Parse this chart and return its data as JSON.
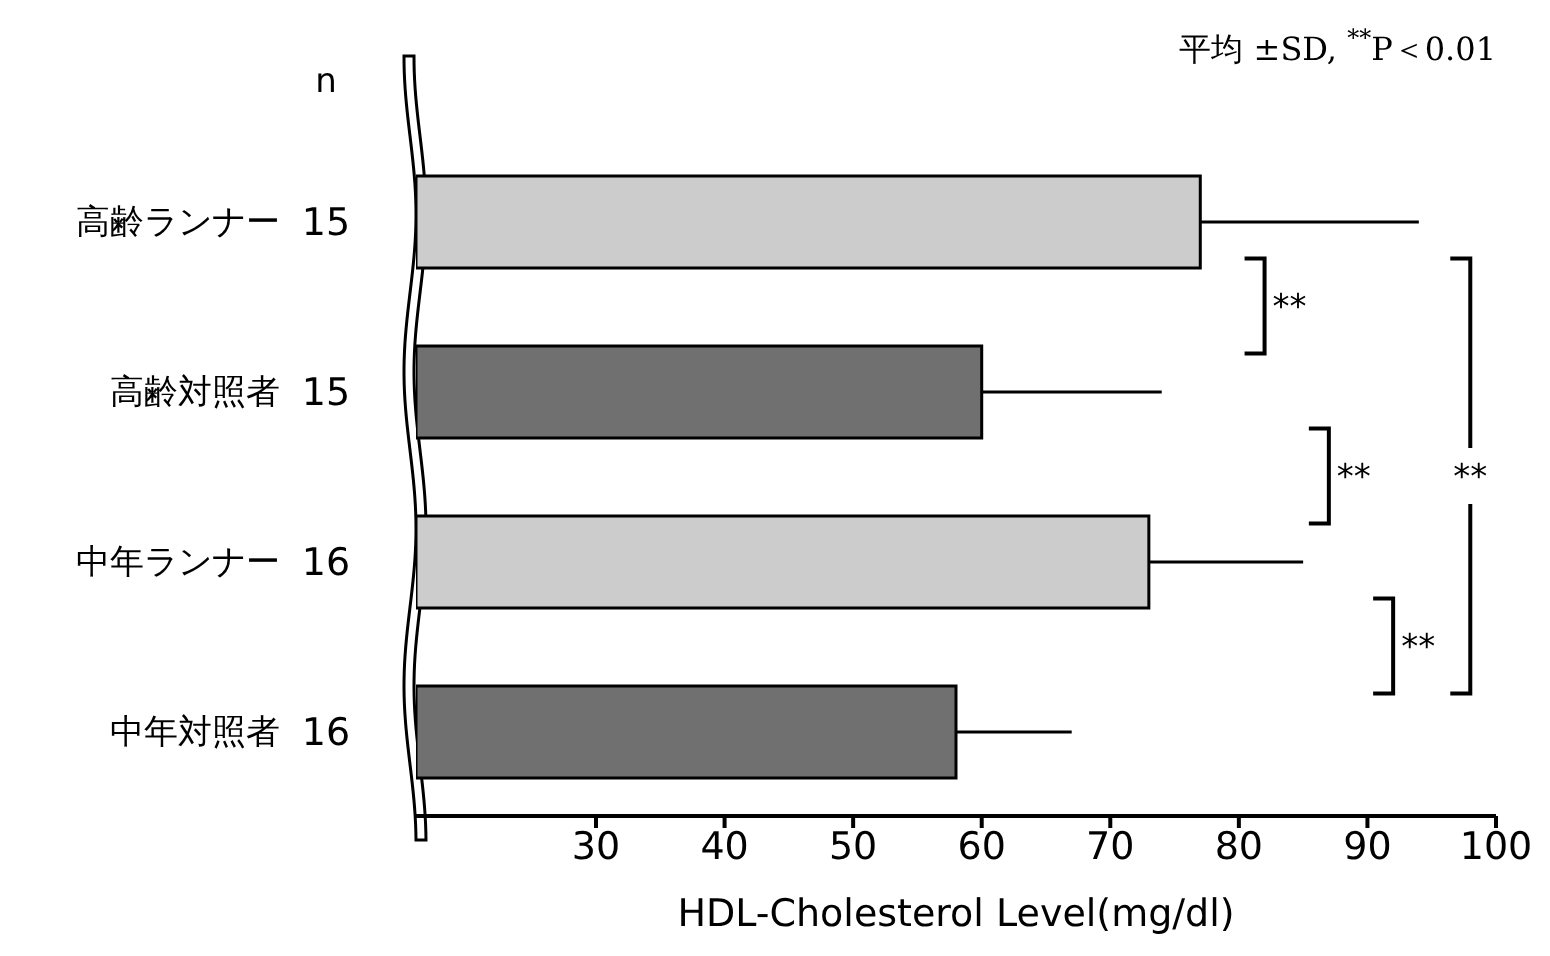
{
  "chart_data": {
    "type": "bar",
    "orientation": "horizontal",
    "xlabel": "HDL-Cholesterol Level(mg/dl)",
    "categories": [
      "高齢ランナー",
      "高齢対照者",
      "中年ランナー",
      "中年対照者"
    ],
    "values": [
      77,
      60,
      73,
      58
    ],
    "colors": [
      "#cccccc",
      "#707070",
      "#cccccc",
      "#707070"
    ],
    "errors": [
      [
        77,
        94
      ],
      [
        60,
        74
      ],
      [
        73,
        85
      ],
      [
        58,
        67
      ]
    ],
    "xlim": [
      16,
      100
    ],
    "xticks": [
      30,
      40,
      50,
      60,
      70,
      80,
      90,
      100
    ],
    "annotations": [
      "平均 ±SD, $^{**}$P＜0.01",
      "n",
      "15",
      "15",
      "16",
      "16",
      "**",
      "**",
      "**",
      "**"
    ]
  }
}
